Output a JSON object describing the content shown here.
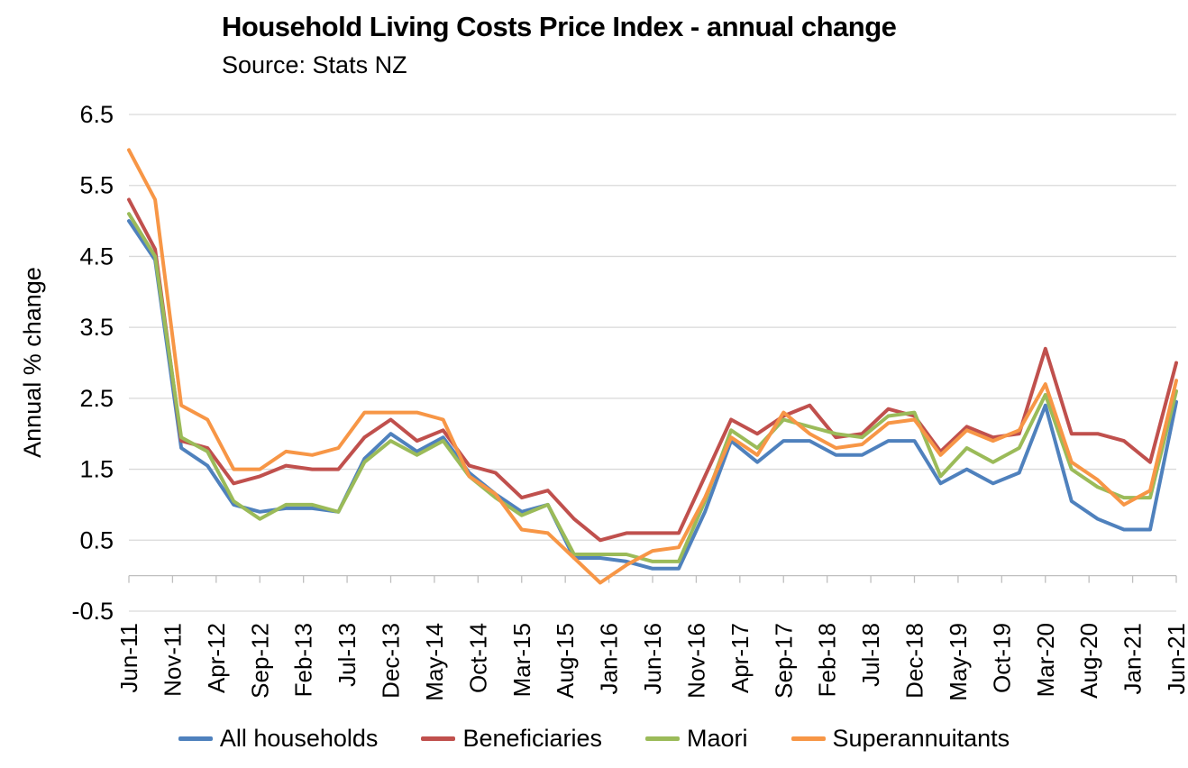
{
  "header": {
    "title": "Household Living Costs Price Index - annual change",
    "source": "Source: Stats NZ"
  },
  "chart_data": {
    "type": "line",
    "title": "Household Living Costs Price Index - annual change",
    "source": "Source: Stats NZ",
    "xlabel": "",
    "ylabel": "Annual % change",
    "ylim": [
      -0.5,
      6.5
    ],
    "yticks": [
      6.5,
      5.5,
      4.5,
      3.5,
      2.5,
      1.5,
      0.5,
      -0.5
    ],
    "grid": true,
    "legend_position": "bottom",
    "x_tick_labels": [
      "Jun-11",
      "Nov-11",
      "Apr-12",
      "Sep-12",
      "Feb-13",
      "Jul-13",
      "Dec-13",
      "May-14",
      "Oct-14",
      "Mar-15",
      "Aug-15",
      "Jan-16",
      "Jun-16",
      "Nov-16",
      "Apr-17",
      "Sep-17",
      "Feb-18",
      "Jul-18",
      "Dec-18",
      "May-19",
      "Oct-19",
      "Mar-20",
      "Aug-20",
      "Jan-21",
      "Jun-21"
    ],
    "categories": [
      "Jun-11",
      "Sep-11",
      "Dec-11",
      "Mar-12",
      "Jun-12",
      "Sep-12",
      "Dec-12",
      "Mar-13",
      "Jun-13",
      "Sep-13",
      "Dec-13",
      "Mar-14",
      "Jun-14",
      "Sep-14",
      "Dec-14",
      "Mar-15",
      "Jun-15",
      "Sep-15",
      "Dec-15",
      "Mar-16",
      "Jun-16",
      "Sep-16",
      "Dec-16",
      "Mar-17",
      "Jun-17",
      "Sep-17",
      "Dec-17",
      "Mar-18",
      "Jun-18",
      "Sep-18",
      "Dec-18",
      "Mar-19",
      "Jun-19",
      "Sep-19",
      "Dec-19",
      "Mar-20",
      "Jun-20",
      "Sep-20",
      "Dec-20",
      "Mar-21",
      "Jun-21"
    ],
    "series": [
      {
        "name": "All households",
        "color": "#4F81BD",
        "values": [
          5.0,
          4.45,
          1.8,
          1.55,
          1.0,
          0.9,
          0.95,
          0.95,
          0.9,
          1.65,
          2.0,
          1.75,
          1.95,
          1.45,
          1.15,
          0.9,
          1.0,
          0.25,
          0.25,
          0.2,
          0.1,
          0.1,
          0.9,
          1.9,
          1.6,
          1.9,
          1.9,
          1.7,
          1.7,
          1.9,
          1.9,
          1.3,
          1.5,
          1.3,
          1.45,
          2.4,
          1.05,
          0.8,
          0.65,
          0.65,
          2.45
        ]
      },
      {
        "name": "Beneficiaries",
        "color": "#C0504D",
        "values": [
          5.3,
          4.6,
          1.9,
          1.8,
          1.3,
          1.4,
          1.55,
          1.5,
          1.5,
          1.95,
          2.2,
          1.9,
          2.05,
          1.55,
          1.45,
          1.1,
          1.2,
          0.8,
          0.5,
          0.6,
          0.6,
          0.6,
          1.4,
          2.2,
          2.0,
          2.25,
          2.4,
          1.95,
          2.0,
          2.35,
          2.25,
          1.75,
          2.1,
          1.95,
          2.0,
          3.2,
          2.0,
          2.0,
          1.9,
          1.6,
          3.0
        ]
      },
      {
        "name": "Maori",
        "color": "#9BBB59",
        "values": [
          5.1,
          4.5,
          1.95,
          1.75,
          1.05,
          0.8,
          1.0,
          1.0,
          0.9,
          1.6,
          1.9,
          1.7,
          1.9,
          1.4,
          1.1,
          0.85,
          1.0,
          0.3,
          0.3,
          0.3,
          0.2,
          0.2,
          1.05,
          2.05,
          1.8,
          2.2,
          2.1,
          2.0,
          1.95,
          2.25,
          2.3,
          1.4,
          1.8,
          1.6,
          1.8,
          2.55,
          1.5,
          1.25,
          1.1,
          1.1,
          2.6
        ]
      },
      {
        "name": "Superannuitants",
        "color": "#F79646",
        "values": [
          6.0,
          5.3,
          2.4,
          2.2,
          1.5,
          1.5,
          1.75,
          1.7,
          1.8,
          2.3,
          2.3,
          2.3,
          2.2,
          1.4,
          1.15,
          0.65,
          0.6,
          0.25,
          -0.1,
          0.15,
          0.35,
          0.4,
          1.1,
          1.95,
          1.7,
          2.3,
          2.0,
          1.8,
          1.85,
          2.15,
          2.2,
          1.7,
          2.05,
          1.9,
          2.05,
          2.7,
          1.6,
          1.35,
          1.0,
          1.2,
          2.75
        ]
      }
    ]
  },
  "colors": {
    "gridline": "#D9D9D9",
    "axis": "#BFBFBF",
    "text": "#000000",
    "background": "#FFFFFF"
  }
}
